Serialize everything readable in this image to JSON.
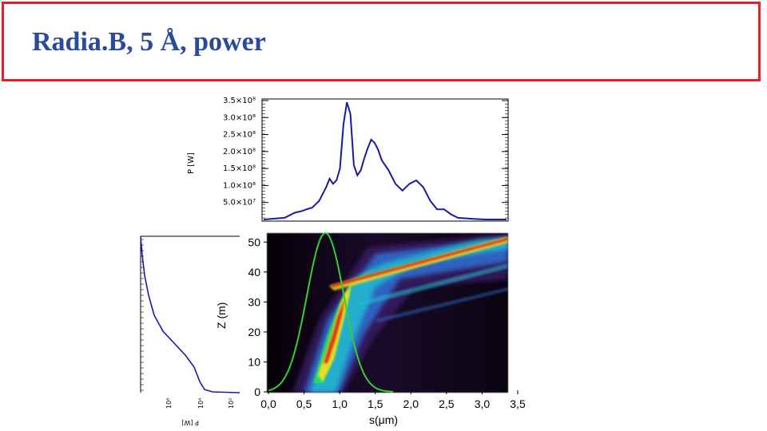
{
  "slide": {
    "title": "Radia.B, 5 Å, power"
  },
  "colors": {
    "title": "#2a4a9c",
    "frame": "#e0202a",
    "curve": "#1a1aa0",
    "gaussian": "#30d030"
  },
  "chart_data": [
    {
      "type": "line",
      "ylabel": "P [W]",
      "yticks": [
        "3.5×10⁸",
        "3.0×10⁸",
        "2.5×10⁸",
        "2.0×10⁸",
        "1.5×10⁸",
        "1.0×10⁸",
        "5.0×10⁷"
      ],
      "ytick_values": [
        350000000.0,
        300000000.0,
        250000000.0,
        200000000.0,
        150000000.0,
        100000000.0,
        50000000.0
      ],
      "xlim": [
        0,
        3.5
      ],
      "ylim": [
        0,
        350000000.0
      ],
      "series": [
        {
          "x": [
            0.0,
            0.3,
            0.45,
            0.55,
            0.62,
            0.7,
            0.8,
            0.9,
            0.95,
            1.0,
            1.05,
            1.1,
            1.15,
            1.2,
            1.25,
            1.3,
            1.35,
            1.4,
            1.45,
            1.5,
            1.55,
            1.6,
            1.65,
            1.7,
            1.8,
            1.9,
            2.0,
            2.1,
            2.2,
            2.3,
            2.4,
            2.5,
            2.6,
            2.7,
            2.8,
            3.0,
            3.2,
            3.5
          ],
          "y": [
            0.0,
            5000000.0,
            20000000.0,
            25000000.0,
            30000000.0,
            35000000.0,
            55000000.0,
            95000000.0,
            120000000.0,
            105000000.0,
            115000000.0,
            150000000.0,
            280000000.0,
            345000000.0,
            310000000.0,
            160000000.0,
            130000000.0,
            145000000.0,
            180000000.0,
            210000000.0,
            235000000.0,
            225000000.0,
            205000000.0,
            175000000.0,
            145000000.0,
            105000000.0,
            85000000.0,
            105000000.0,
            115000000.0,
            95000000.0,
            55000000.0,
            30000000.0,
            30000000.0,
            15000000.0,
            5000000.0,
            2000000.0,
            0.0,
            0.0
          ]
        }
      ]
    },
    {
      "type": "heatmap",
      "xlabel": "s(μm)",
      "ylabel": "Z (m)",
      "xticks": [
        "0,0",
        "0,5",
        "1,0",
        "1,5",
        "2,0",
        "2,5",
        "3,0",
        "3,5"
      ],
      "xtick_values": [
        0,
        0.5,
        1.0,
        1.5,
        2.0,
        2.5,
        3.0,
        3.5
      ],
      "yticks": [
        "0",
        "10",
        "20",
        "30",
        "40",
        "50"
      ],
      "ytick_values": [
        0,
        10,
        20,
        30,
        40,
        50
      ],
      "xlim": [
        0,
        3.5
      ],
      "ylim": [
        0,
        53
      ],
      "gaussian": {
        "center": 0.8,
        "sigma": 0.26,
        "amplitude": 53
      }
    },
    {
      "type": "line",
      "ylabel": "P [W]",
      "xticks": [
        "10⁸",
        "10⁴",
        "10²"
      ],
      "scale": "log"
    }
  ]
}
